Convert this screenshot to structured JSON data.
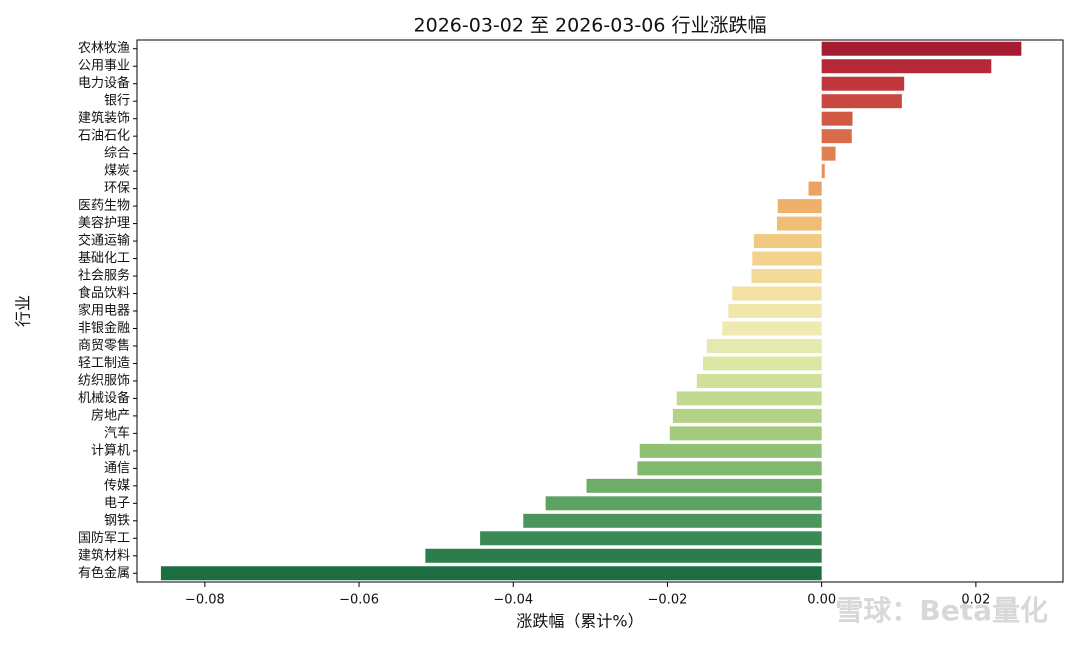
{
  "chart_data": {
    "type": "barh",
    "title": "2026-03-02 至 2026-03-06 行业涨跌幅",
    "xlabel": "涨跌幅（累计%）",
    "ylabel": "行业",
    "watermark": "雪球：Beta量化",
    "categories": [
      "农林牧渔",
      "公用事业",
      "电力设备",
      "银行",
      "建筑装饰",
      "石油石化",
      "综合",
      "煤炭",
      "环保",
      "医药生物",
      "美容护理",
      "交通运输",
      "基础化工",
      "社会服务",
      "食品饮料",
      "家用电器",
      "非银金融",
      "商贸零售",
      "轻工制造",
      "纺织服饰",
      "机械设备",
      "房地产",
      "汽车",
      "计算机",
      "通信",
      "传媒",
      "电子",
      "钢铁",
      "国防军工",
      "建筑材料",
      "有色金属"
    ],
    "values": [
      0.0259,
      0.022,
      0.0107,
      0.0104,
      0.004,
      0.0039,
      0.0018,
      0.0004,
      -0.0017,
      -0.0057,
      -0.0058,
      -0.0088,
      -0.009,
      -0.0091,
      -0.0116,
      -0.0121,
      -0.0129,
      -0.0149,
      -0.0154,
      -0.0162,
      -0.0188,
      -0.0193,
      -0.0197,
      -0.0236,
      -0.0239,
      -0.0305,
      -0.0358,
      -0.0387,
      -0.0443,
      -0.0514,
      -0.0857
    ],
    "colors": [
      "#a51c30",
      "#b52835",
      "#c0383c",
      "#c84841",
      "#d25a45",
      "#da6b4b",
      "#e07f52",
      "#e69158",
      "#eba262",
      "#eeb06a",
      "#f0bd74",
      "#f2c981",
      "#f3d28e",
      "#f3da99",
      "#f3e1a3",
      "#f1e6ab",
      "#eeeab2",
      "#e6e9ae",
      "#dce6a5",
      "#d0e09b",
      "#c2d990",
      "#b3d286",
      "#a3ca7d",
      "#92c175",
      "#80b86e",
      "#6ead68",
      "#5ca262",
      "#4a965b",
      "#3a8a53",
      "#2b7d4b",
      "#1d6f42"
    ],
    "xlim": [
      -0.0888,
      0.0313
    ],
    "xticks": [
      {
        "value": -0.08,
        "label": "−0.08"
      },
      {
        "value": -0.06,
        "label": "−0.06"
      },
      {
        "value": -0.04,
        "label": "−0.04"
      },
      {
        "value": -0.02,
        "label": "−0.02"
      },
      {
        "value": 0,
        "label": "0.00"
      },
      {
        "value": 0.02,
        "label": "0.02"
      }
    ]
  }
}
